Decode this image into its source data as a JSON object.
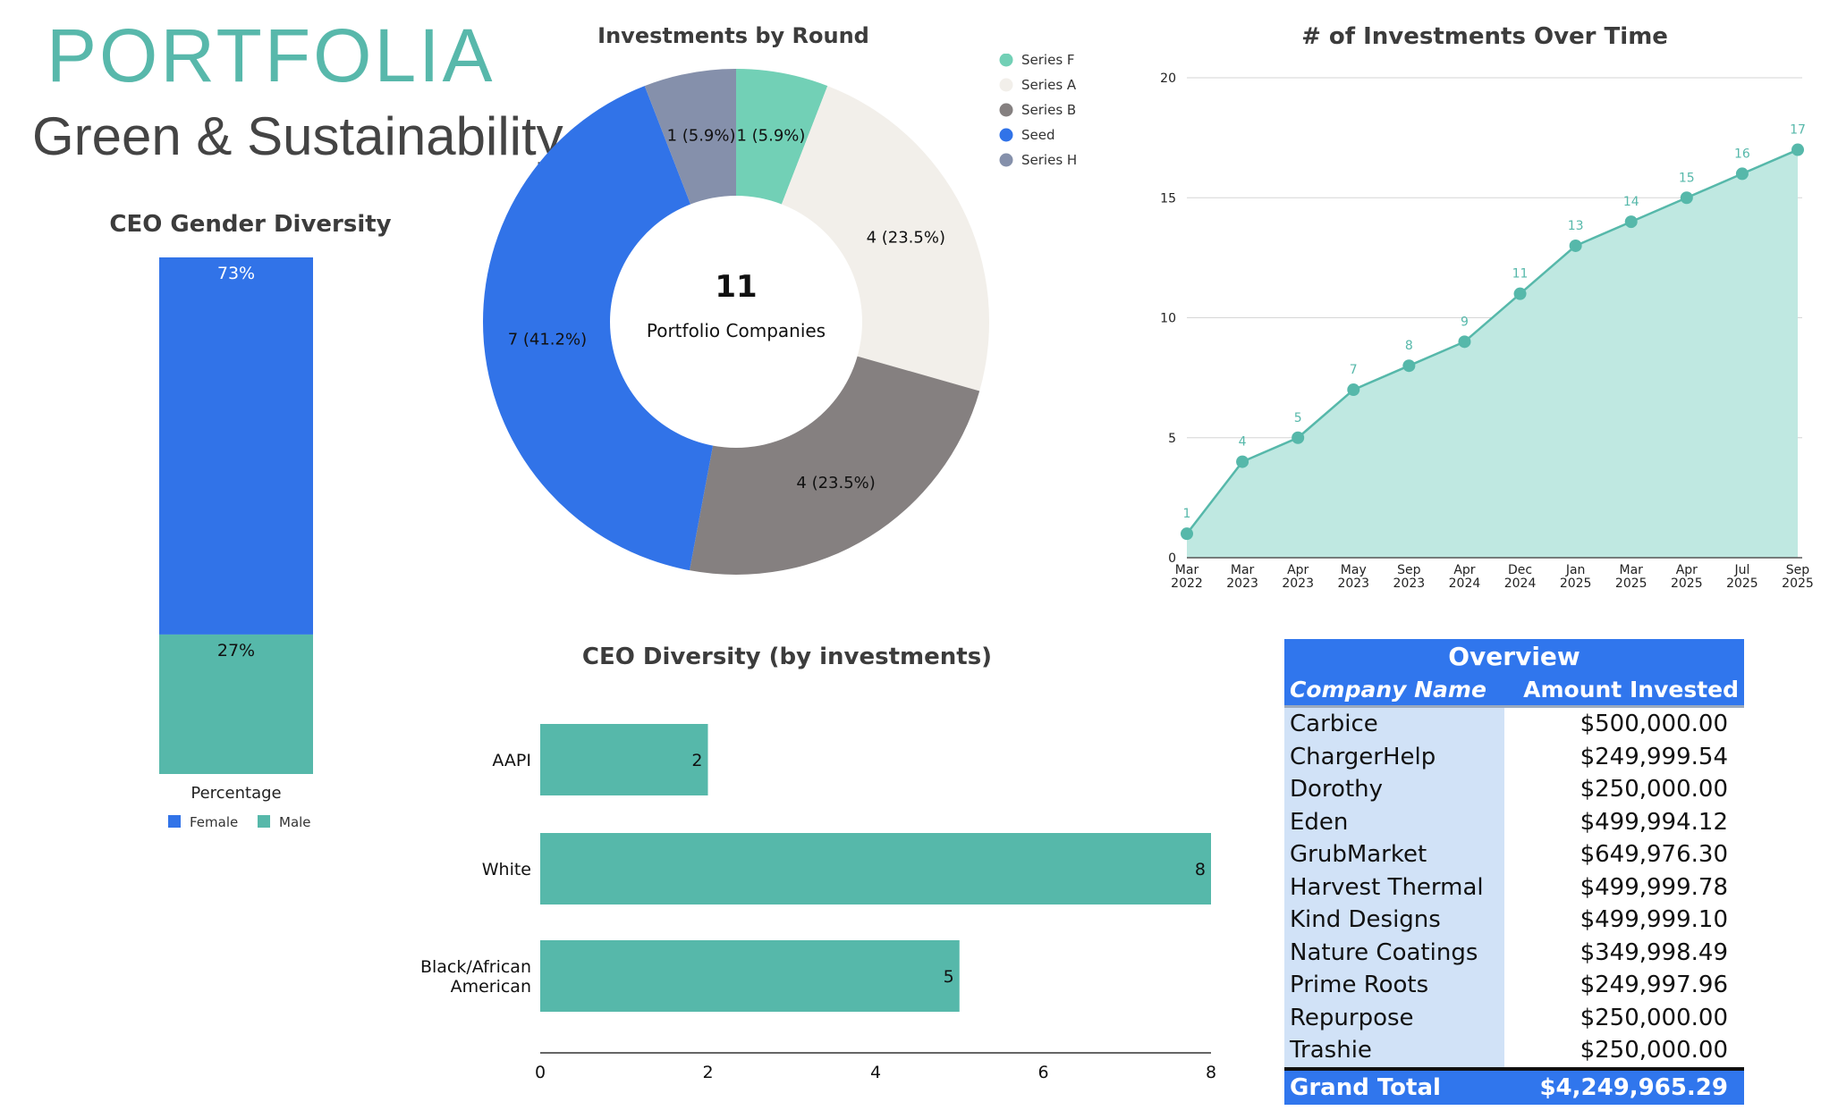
{
  "header": {
    "brand": "PORTFOLIA",
    "subtitle": "Green & Sustainability"
  },
  "colors": {
    "teal": "#56b8aa",
    "blue": "#3173e8",
    "cream": "#f2efea",
    "gray": "#858080",
    "slate": "#8590ab",
    "mint": "#72d0b6"
  },
  "donut_center": {
    "value": "11",
    "label": "Portfolio Companies"
  },
  "overview": {
    "title": "Overview",
    "col_company": "Company Name",
    "col_amount": "Amount Invested",
    "rows": [
      {
        "name": "Carbice",
        "amount": "$500,000.00"
      },
      {
        "name": "ChargerHelp",
        "amount": "$249,999.54"
      },
      {
        "name": "Dorothy",
        "amount": "$250,000.00"
      },
      {
        "name": "Eden",
        "amount": "$499,994.12"
      },
      {
        "name": "GrubMarket",
        "amount": "$649,976.30"
      },
      {
        "name": "Harvest Thermal",
        "amount": "$499,999.78"
      },
      {
        "name": "Kind Designs",
        "amount": "$499,999.10"
      },
      {
        "name": "Nature Coatings",
        "amount": "$349,998.49"
      },
      {
        "name": "Prime Roots",
        "amount": "$249,997.96"
      },
      {
        "name": "Repurpose",
        "amount": "$250,000.00"
      },
      {
        "name": "Trashie",
        "amount": "$250,000.00"
      }
    ],
    "total_label": "Grand Total",
    "total_amount": "$4,249,965.29"
  },
  "chart_data": [
    {
      "type": "bar",
      "stacked": true,
      "title": "CEO Gender Diversity",
      "categories": [
        "Percentage"
      ],
      "xlabel": "Percentage",
      "series": [
        {
          "name": "Female",
          "values": [
            73
          ],
          "label": "73%",
          "color": "#3173e8"
        },
        {
          "name": "Male",
          "values": [
            27
          ],
          "label": "27%",
          "color": "#56b8aa"
        }
      ],
      "ylim": [
        0,
        100
      ],
      "legend": "bottom"
    },
    {
      "type": "pie",
      "donut": true,
      "title": "Investments by Round",
      "slices": [
        {
          "name": "Series F",
          "value": 1,
          "label": "1 (5.9%)",
          "color": "#72d0b6"
        },
        {
          "name": "Series A",
          "value": 4,
          "label": "4 (23.5%)",
          "color": "#f2efea"
        },
        {
          "name": "Series B",
          "value": 4,
          "label": "4 (23.5%)",
          "color": "#858080"
        },
        {
          "name": "Seed",
          "value": 7,
          "label": "7 (41.2%)",
          "color": "#3173e8"
        },
        {
          "name": "Series H",
          "value": 1,
          "label": "1 (5.9%)",
          "color": "#8590ab"
        }
      ],
      "legend": "top-right"
    },
    {
      "type": "area",
      "title": "# of Investments Over Time",
      "x": [
        "Mar 2022",
        "Mar 2023",
        "Apr 2023",
        "May 2023",
        "Sep 2023",
        "Apr 2024",
        "Dec 2024",
        "Jan 2025",
        "Mar 2025",
        "Apr 2025",
        "Jul 2025",
        "Sep 2025"
      ],
      "values": [
        1,
        4,
        5,
        7,
        8,
        9,
        11,
        13,
        14,
        15,
        16,
        17
      ],
      "ylim": [
        0,
        20
      ],
      "yticks": [
        0,
        5,
        10,
        15,
        20
      ],
      "grid": true,
      "color": "#56b8aa"
    },
    {
      "type": "bar",
      "orientation": "horizontal",
      "title": "CEO Diversity (by investments)",
      "categories": [
        "AAPI",
        "White",
        "Black/African American"
      ],
      "values": [
        2,
        8,
        5
      ],
      "xlim": [
        0,
        8
      ],
      "xticks": [
        0,
        2,
        4,
        6,
        8
      ],
      "color": "#56b8aa"
    }
  ]
}
